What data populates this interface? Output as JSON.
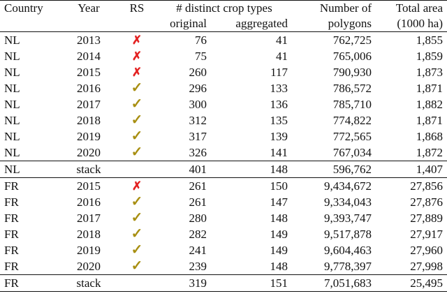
{
  "table": {
    "headers": {
      "country": "Country",
      "year": "Year",
      "rs": "RS",
      "distinct_crop_types": "# distinct crop types",
      "original": "original",
      "aggregated": "aggregated",
      "number_of": "Number of",
      "polygons": "polygons",
      "total_area": "Total area",
      "total_area_unit": "(1000 ha)"
    },
    "icons": {
      "rs_no": "cross-mark-icon",
      "rs_yes": "check-mark-icon",
      "rs_no_color": "#e32222",
      "rs_yes_color": "#a88f12"
    },
    "rows": [
      {
        "country": "NL",
        "year": "2013",
        "rs": "✗",
        "original": "76",
        "aggregated": "41",
        "polygons": "762,725",
        "area": "1,855"
      },
      {
        "country": "NL",
        "year": "2014",
        "rs": "✗",
        "original": "75",
        "aggregated": "41",
        "polygons": "765,006",
        "area": "1,859"
      },
      {
        "country": "NL",
        "year": "2015",
        "rs": "✗",
        "original": "260",
        "aggregated": "117",
        "polygons": "790,930",
        "area": "1,873"
      },
      {
        "country": "NL",
        "year": "2016",
        "rs": "✓",
        "original": "296",
        "aggregated": "133",
        "polygons": "786,572",
        "area": "1,871"
      },
      {
        "country": "NL",
        "year": "2017",
        "rs": "✓",
        "original": "300",
        "aggregated": "136",
        "polygons": "785,710",
        "area": "1,882"
      },
      {
        "country": "NL",
        "year": "2018",
        "rs": "✓",
        "original": "312",
        "aggregated": "135",
        "polygons": "774,822",
        "area": "1,871"
      },
      {
        "country": "NL",
        "year": "2019",
        "rs": "✓",
        "original": "317",
        "aggregated": "139",
        "polygons": "772,565",
        "area": "1,868"
      },
      {
        "country": "NL",
        "year": "2020",
        "rs": "✓",
        "original": "326",
        "aggregated": "141",
        "polygons": "767,034",
        "area": "1,872"
      },
      {
        "country": "NL",
        "year": "stack",
        "rs": "",
        "original": "401",
        "aggregated": "148",
        "polygons": "596,762",
        "area": "1,407"
      },
      {
        "country": "FR",
        "year": "2015",
        "rs": "✗",
        "original": "261",
        "aggregated": "150",
        "polygons": "9,434,672",
        "area": "27,856"
      },
      {
        "country": "FR",
        "year": "2016",
        "rs": "✓",
        "original": "261",
        "aggregated": "147",
        "polygons": "9,334,043",
        "area": "27,876"
      },
      {
        "country": "FR",
        "year": "2017",
        "rs": "✓",
        "original": "280",
        "aggregated": "148",
        "polygons": "9,393,747",
        "area": "27,889"
      },
      {
        "country": "FR",
        "year": "2018",
        "rs": "✓",
        "original": "282",
        "aggregated": "149",
        "polygons": "9,517,878",
        "area": "27,917"
      },
      {
        "country": "FR",
        "year": "2019",
        "rs": "✓",
        "original": "241",
        "aggregated": "149",
        "polygons": "9,604,463",
        "area": "27,960"
      },
      {
        "country": "FR",
        "year": "2020",
        "rs": "✓",
        "original": "239",
        "aggregated": "148",
        "polygons": "9,778,397",
        "area": "27,998"
      },
      {
        "country": "FR",
        "year": "stack",
        "rs": "",
        "original": "319",
        "aggregated": "151",
        "polygons": "7,051,683",
        "area": "25,495"
      }
    ]
  }
}
